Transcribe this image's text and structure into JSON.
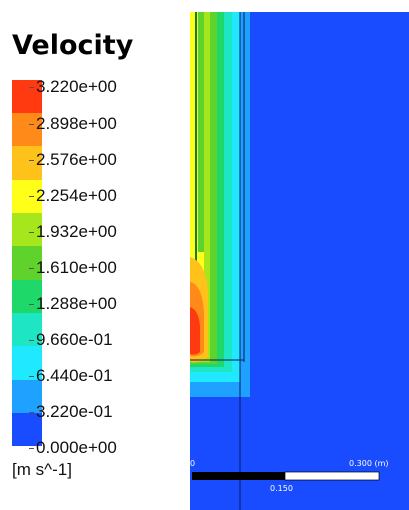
{
  "legend": {
    "title": "Velocity",
    "units": "[m s^-1]",
    "ticks": [
      "3.220e+00",
      "2.898e+00",
      "2.576e+00",
      "2.254e+00",
      "1.932e+00",
      "1.610e+00",
      "1.288e+00",
      "9.660e-01",
      "6.440e-01",
      "3.220e-01",
      "0.000e+00"
    ],
    "colors": [
      "#ff3a10",
      "#ff8a1a",
      "#ffc21a",
      "#ffff1a",
      "#a6e61c",
      "#5fd22c",
      "#1fd86a",
      "#1ee6c4",
      "#20e8ff",
      "#1fa2ff",
      "#1a4cff"
    ]
  },
  "scale": {
    "start": "0",
    "end": "0.300 (m)",
    "mid": "0.150"
  }
}
